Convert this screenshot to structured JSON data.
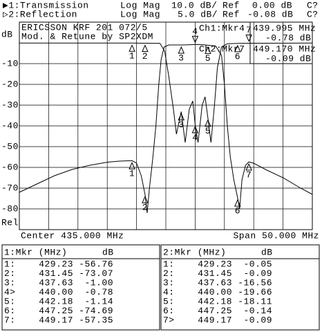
{
  "header": {
    "rows": [
      [
        "▶1:Transmission",
        "Log Mag",
        "10.0 dB/",
        "Ref",
        "0.00 dB",
        "C?"
      ],
      [
        "▷2:Reflection",
        "Log Mag",
        "5.0 dB/",
        "Ref",
        "-0.08 dB",
        "C?"
      ]
    ]
  },
  "chart_data": {
    "type": "line",
    "annotations": [
      "ERICSSON KRF 201 072/5",
      "Mod. & Retune by SP2XDM"
    ],
    "marker_readout": [
      [
        "Ch1:Mkr4",
        "439.995 MHz",
        "-0.78 dB"
      ],
      [
        "Ch2:Mkr7",
        "449.170 MHz",
        "-0.09 dB"
      ]
    ],
    "y_label": "dB",
    "y_label_bottom": "Rel",
    "x_label_left": "Center 435.000 MHz",
    "x_label_right": "Span 50.000 MHz",
    "xlim": [
      410,
      460
    ],
    "xticks": [
      410,
      415,
      420,
      425,
      430,
      435,
      440,
      445,
      450,
      455,
      460
    ],
    "ylim": [
      -90,
      10
    ],
    "yticks": [
      -10,
      -20,
      -30,
      -40,
      -50,
      -60,
      -70,
      -80
    ],
    "y2lim": [
      -45,
      5
    ],
    "grid": true,
    "markers": [
      "1",
      "2",
      "3",
      "4",
      "5",
      "6",
      "7"
    ],
    "series": [
      {
        "color": "#000000",
        "x": [
          410,
          413,
          416,
          419,
          422,
          425,
          427,
          429.23,
          430,
          430.8,
          431.45,
          431.8,
          432.2,
          432.8,
          433.3,
          433.8,
          434.2,
          434.7,
          435.5,
          436.5,
          437.63,
          439,
          440,
          441,
          442.18,
          443.5,
          444.5,
          445,
          445.5,
          446,
          446.6,
          447.25,
          447.6,
          448,
          448.6,
          449.17,
          450,
          452,
          455,
          458,
          460
        ],
        "values": [
          -72,
          -68,
          -64,
          -61,
          -59,
          -57.5,
          -57,
          -56.76,
          -58,
          -64,
          -73.07,
          -82,
          -70,
          -55,
          -40,
          -20,
          -8,
          -2,
          -1,
          -1,
          -1,
          -0.9,
          -0.78,
          -0.8,
          -1.14,
          -1.5,
          -6,
          -20,
          -40,
          -55,
          -66,
          -74.69,
          -80,
          -66,
          -59,
          -57.35,
          -58,
          -61,
          -65,
          -70,
          -73
        ]
      },
      {
        "color": "#000000",
        "axis": "y2",
        "x": [
          410,
          420,
          429.23,
          431.45,
          434,
          434.8,
          435.5,
          436.3,
          436.8,
          437.63,
          438.3,
          439,
          439.6,
          440,
          440.5,
          441.2,
          441.7,
          442.18,
          442.7,
          443.3,
          443.8,
          444.5,
          445.5,
          447.25,
          449.17,
          460
        ],
        "values": [
          -0.05,
          -0.05,
          -0.05,
          -0.09,
          -0.1,
          -2,
          -8,
          -16,
          -22,
          -16.56,
          -24,
          -16,
          -14,
          -19.66,
          -24,
          -15,
          -13,
          -18.11,
          -24,
          -15,
          -6,
          -1,
          -0.2,
          -0.14,
          -0.09,
          -0.05
        ]
      }
    ]
  },
  "marker_tables": [
    {
      "header": [
        "1:Mkr (MHz)",
        "dB"
      ],
      "rows": [
        [
          "1:",
          "429.23",
          "-56.76"
        ],
        [
          "2:",
          "431.45",
          "-73.07"
        ],
        [
          "3:",
          "437.63",
          "-1.00"
        ],
        [
          "4>",
          "440.00",
          "-0.78"
        ],
        [
          "5:",
          "442.18",
          "-1.14"
        ],
        [
          "6:",
          "447.25",
          "-74.69"
        ],
        [
          "7:",
          "449.17",
          "-57.35"
        ]
      ]
    },
    {
      "header": [
        "2:Mkr (MHz)",
        "dB"
      ],
      "rows": [
        [
          "1:",
          "429.23",
          "-0.05"
        ],
        [
          "2:",
          "431.45",
          "-0.09"
        ],
        [
          "3:",
          "437.63",
          "-16.56"
        ],
        [
          "4:",
          "440.00",
          "-19.66"
        ],
        [
          "5:",
          "442.18",
          "-18.11"
        ],
        [
          "6:",
          "447.25",
          "-0.14"
        ],
        [
          "7>",
          "449.17",
          "-0.09"
        ]
      ]
    }
  ]
}
